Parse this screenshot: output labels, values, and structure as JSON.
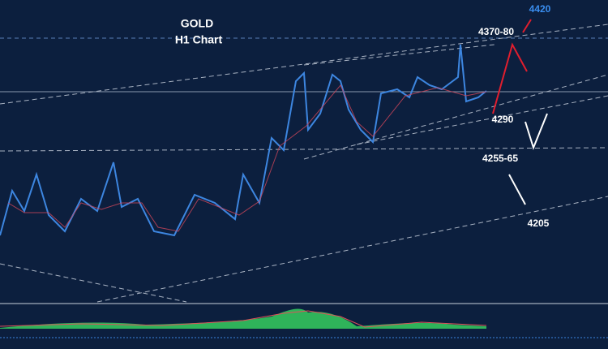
{
  "header": {
    "title": "GOLD",
    "subtitle": "H1 Chart"
  },
  "levels": [
    {
      "label": "4420"
    },
    {
      "label": "4370-80"
    },
    {
      "label": "4290"
    },
    {
      "label": "4255-65"
    },
    {
      "label": "4205"
    }
  ]
}
